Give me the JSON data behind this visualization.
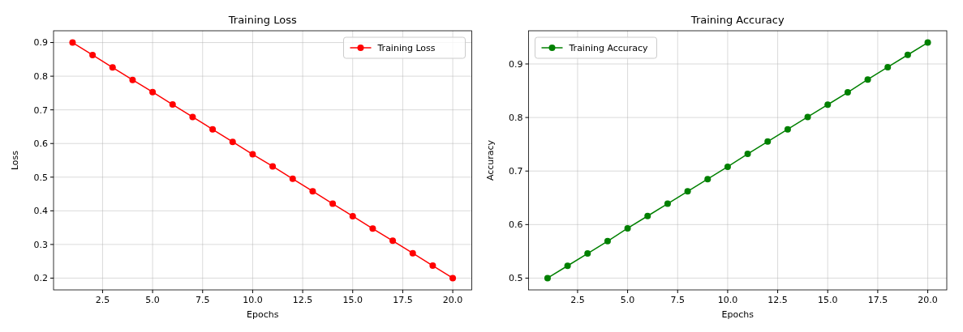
{
  "chart_data": [
    {
      "type": "line",
      "title": "Training Loss",
      "xlabel": "Epochs",
      "ylabel": "Loss",
      "x": [
        1,
        2,
        3,
        4,
        5,
        6,
        7,
        8,
        9,
        10,
        11,
        12,
        13,
        14,
        15,
        16,
        17,
        18,
        19,
        20
      ],
      "series": [
        {
          "name": "Training Loss",
          "color": "#ff0000",
          "values": [
            0.9,
            0.863,
            0.826,
            0.789,
            0.753,
            0.716,
            0.679,
            0.642,
            0.605,
            0.568,
            0.532,
            0.495,
            0.458,
            0.421,
            0.384,
            0.347,
            0.311,
            0.274,
            0.237,
            0.2
          ]
        }
      ],
      "xlim": [
        0.05,
        20.95
      ],
      "xticks": [
        {
          "value": 2.5,
          "label": "2.5"
        },
        {
          "value": 5,
          "label": "5.0"
        },
        {
          "value": 7.5,
          "label": "7.5"
        },
        {
          "value": 10,
          "label": "10.0"
        },
        {
          "value": 12.5,
          "label": "12.5"
        },
        {
          "value": 15,
          "label": "15.0"
        },
        {
          "value": 17.5,
          "label": "17.5"
        },
        {
          "value": 20,
          "label": "20.0"
        }
      ],
      "ylim": [
        0.165,
        0.935
      ],
      "yticks": [
        0.2,
        0.3,
        0.4,
        0.5,
        0.6,
        0.7,
        0.8,
        0.9
      ],
      "grid": true,
      "legend": "top right",
      "marker": "circle",
      "line_style": "solid"
    },
    {
      "type": "line",
      "title": "Training Accuracy",
      "xlabel": "Epochs",
      "ylabel": "Accuracy",
      "x": [
        1,
        2,
        3,
        4,
        5,
        6,
        7,
        8,
        9,
        10,
        11,
        12,
        13,
        14,
        15,
        16,
        17,
        18,
        19,
        20
      ],
      "series": [
        {
          "name": "Training Accuracy",
          "color": "#008000",
          "values": [
            0.5,
            0.523,
            0.546,
            0.569,
            0.593,
            0.616,
            0.639,
            0.662,
            0.685,
            0.708,
            0.732,
            0.755,
            0.778,
            0.801,
            0.824,
            0.847,
            0.871,
            0.894,
            0.917,
            0.94
          ]
        }
      ],
      "xlim": [
        0.05,
        20.95
      ],
      "xticks": [
        {
          "value": 2.5,
          "label": "2.5"
        },
        {
          "value": 5,
          "label": "5.0"
        },
        {
          "value": 7.5,
          "label": "7.5"
        },
        {
          "value": 10,
          "label": "10.0"
        },
        {
          "value": 12.5,
          "label": "12.5"
        },
        {
          "value": 15,
          "label": "15.0"
        },
        {
          "value": 17.5,
          "label": "17.5"
        },
        {
          "value": 20,
          "label": "20.0"
        }
      ],
      "ylim": [
        0.478,
        0.962
      ],
      "yticks": [
        0.5,
        0.6,
        0.7,
        0.8,
        0.9
      ],
      "grid": true,
      "legend": "top left",
      "marker": "circle",
      "line_style": "solid"
    }
  ]
}
